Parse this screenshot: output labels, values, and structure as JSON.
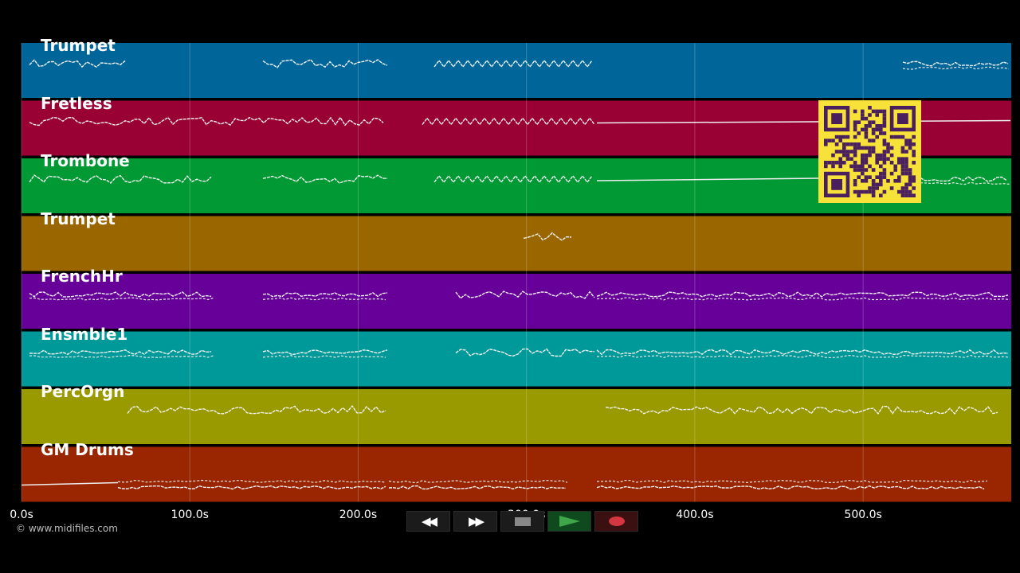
{
  "timeline": {
    "max_seconds": 588,
    "ticks": [
      {
        "seconds": 0,
        "label": "0.0s"
      },
      {
        "seconds": 100,
        "label": "100.0s"
      },
      {
        "seconds": 200,
        "label": "200.0s"
      },
      {
        "seconds": 300,
        "label": "300.0s"
      },
      {
        "seconds": 400,
        "label": "400.0s"
      },
      {
        "seconds": 500,
        "label": "500.0s"
      }
    ]
  },
  "tracks": [
    {
      "name": "Trumpet",
      "color": "#006699"
    },
    {
      "name": "Fretless",
      "color": "#990033"
    },
    {
      "name": "Trombone",
      "color": "#009933"
    },
    {
      "name": "Trumpet",
      "color": "#996600"
    },
    {
      "name": "FrenchHr",
      "color": "#660099"
    },
    {
      "name": "Ensmble1",
      "color": "#009999"
    },
    {
      "name": "PercOrgn",
      "color": "#999900"
    },
    {
      "name": "GM Drums",
      "color": "#992600"
    }
  ],
  "credit": "© www.midifiles.com",
  "transport": {
    "rewind_icon": "rewind-icon",
    "fast_forward_icon": "fast-forward-icon",
    "stop_icon": "stop-icon",
    "play_icon": "play-icon",
    "record_icon": "record-icon"
  },
  "qr_colors": {
    "dark": "#4a1f5e",
    "light": "#f7e23a"
  }
}
